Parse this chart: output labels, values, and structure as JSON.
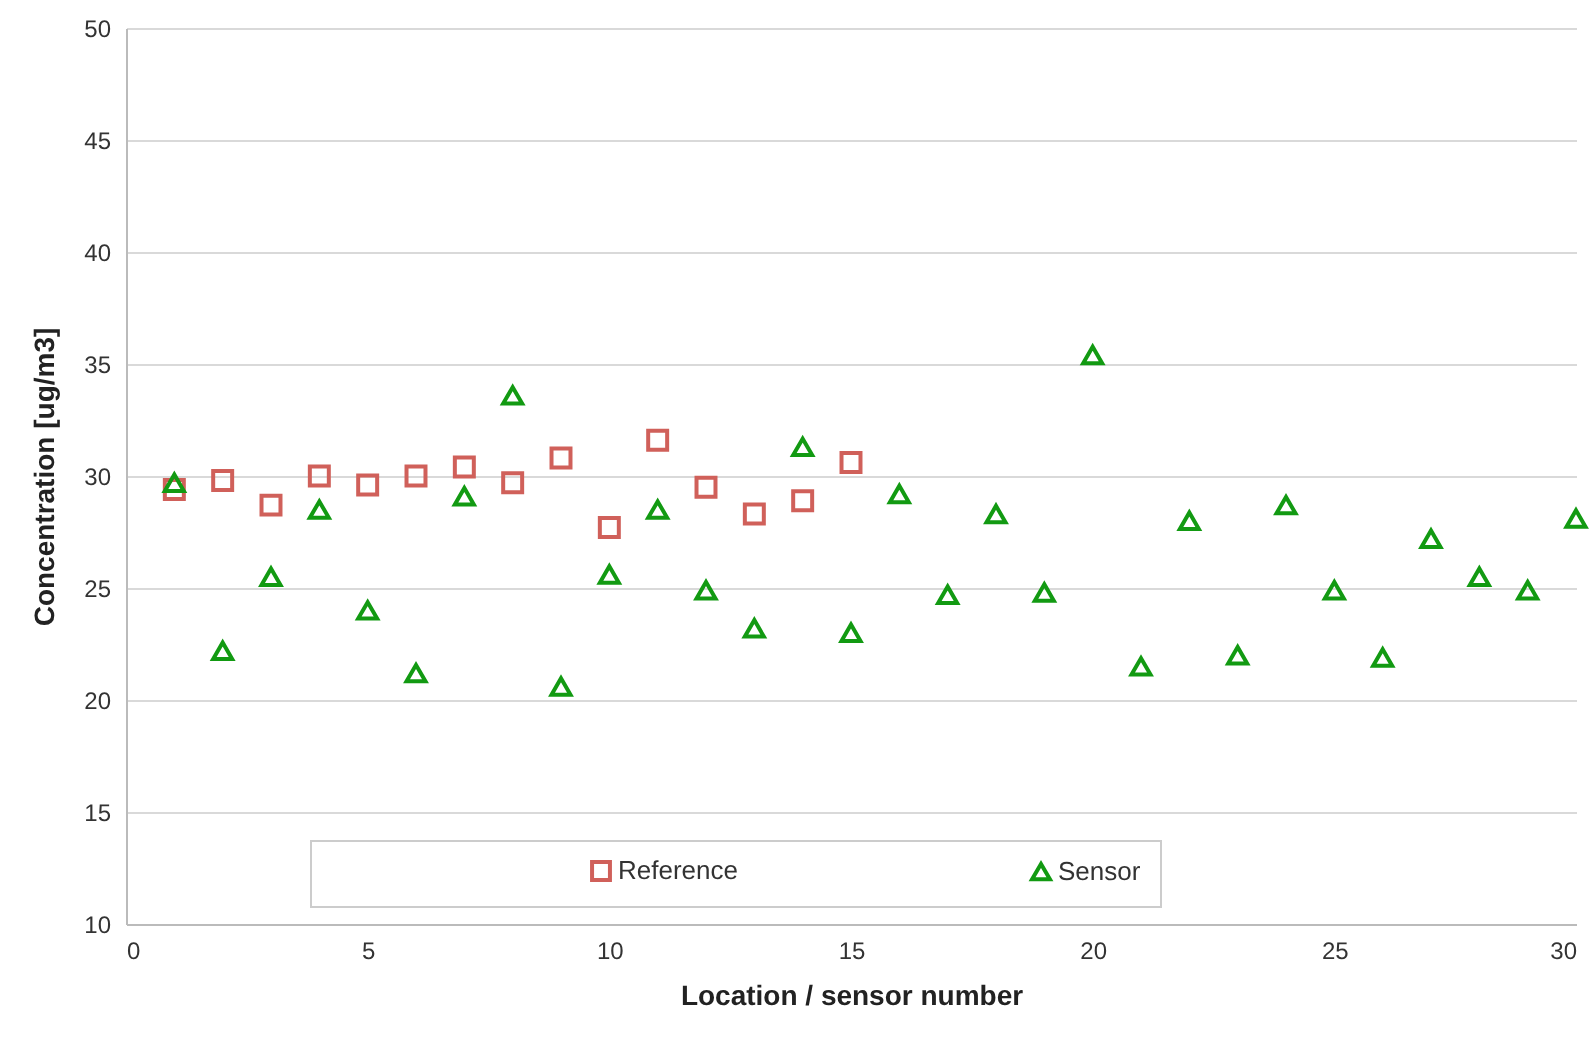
{
  "chart_data": {
    "type": "scatter",
    "xlabel": "Location / sensor number",
    "ylabel": "Concentration  [ug/m3]",
    "xlim": [
      0,
      30
    ],
    "xticks": [
      0,
      5,
      10,
      15,
      20,
      25,
      30
    ],
    "ylim": [
      10,
      50
    ],
    "yticks": [
      10,
      15,
      20,
      25,
      30,
      35,
      40,
      45,
      50
    ],
    "grid": "y",
    "legend": "bottom",
    "series": [
      {
        "name": "Reference",
        "color": "#d0605a",
        "marker": "square",
        "x": [
          1,
          2,
          3,
          4,
          5,
          6,
          7,
          8,
          9,
          10,
          11,
          12,
          13,
          14,
          15
        ],
        "values": [
          29.4,
          29.8,
          28.7,
          30.0,
          29.6,
          30.0,
          30.4,
          29.7,
          30.8,
          27.7,
          31.6,
          29.5,
          28.3,
          28.9,
          30.6
        ]
      },
      {
        "name": "Sensor",
        "color": "#129a12",
        "marker": "triangle",
        "x": [
          1,
          2,
          3,
          4,
          5,
          6,
          7,
          8,
          9,
          10,
          11,
          12,
          13,
          14,
          15,
          16,
          17,
          18,
          19,
          20,
          21,
          22,
          23,
          24,
          25,
          26,
          27,
          28,
          29,
          30
        ],
        "values": [
          29.7,
          22.2,
          25.5,
          28.5,
          24.0,
          21.2,
          29.1,
          33.6,
          20.6,
          25.6,
          28.5,
          24.9,
          23.2,
          31.3,
          23.0,
          29.2,
          24.7,
          28.3,
          24.8,
          35.4,
          21.5,
          28.0,
          22.0,
          28.7,
          24.9,
          21.9,
          27.2,
          25.5,
          24.9,
          28.1
        ]
      }
    ]
  }
}
